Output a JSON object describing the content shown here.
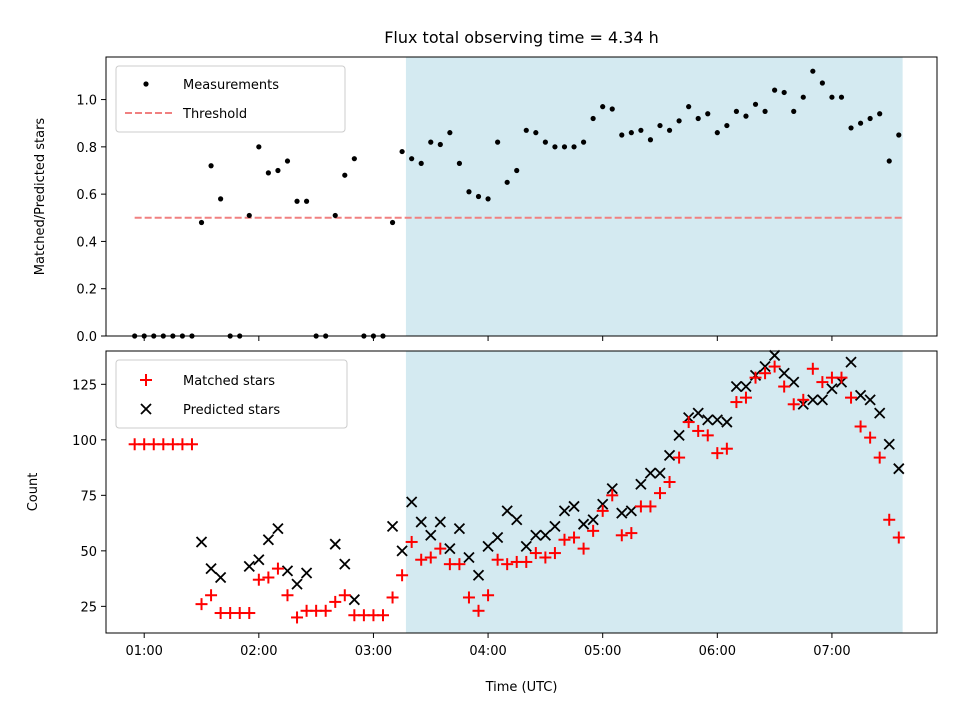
{
  "chart_data": [
    {
      "type": "scatter",
      "title": "Flux total observing time = 4.34 h",
      "xlabel": "",
      "ylabel": "Matched/Predicted stars",
      "xlim": [
        "00:40",
        "07:55"
      ],
      "ylim": [
        0,
        1.18
      ],
      "yticks": [
        "0.0",
        "0.2",
        "0.4",
        "0.6",
        "0.8",
        "1.0"
      ],
      "grid": false,
      "legend_position": "top-left",
      "shaded_span": {
        "from": "03:17",
        "to": "07:37",
        "color": "#d4eaf1"
      },
      "threshold": {
        "name": "Threshold",
        "value": 0.5,
        "from": "00:55",
        "to": "07:37",
        "color": "#f08080"
      },
      "series": [
        {
          "name": "Measurements",
          "color": "#000000",
          "x": [
            "00:55",
            "01:00",
            "01:05",
            "01:10",
            "01:15",
            "01:20",
            "01:25",
            "01:30",
            "01:35",
            "01:40",
            "01:45",
            "01:50",
            "01:55",
            "02:00",
            "02:05",
            "02:10",
            "02:15",
            "02:20",
            "02:25",
            "02:30",
            "02:35",
            "02:40",
            "02:45",
            "02:50",
            "02:55",
            "03:00",
            "03:05",
            "03:10",
            "03:15",
            "03:20",
            "03:25",
            "03:30",
            "03:35",
            "03:40",
            "03:45",
            "03:50",
            "03:55",
            "04:00",
            "04:05",
            "04:10",
            "04:15",
            "04:20",
            "04:25",
            "04:30",
            "04:35",
            "04:40",
            "04:45",
            "04:50",
            "04:55",
            "05:00",
            "05:05",
            "05:10",
            "05:15",
            "05:20",
            "05:25",
            "05:30",
            "05:35",
            "05:40",
            "05:45",
            "05:50",
            "05:55",
            "06:00",
            "06:05",
            "06:10",
            "06:15",
            "06:20",
            "06:25",
            "06:30",
            "06:35",
            "06:40",
            "06:45",
            "06:50",
            "06:55",
            "07:00",
            "07:05",
            "07:10",
            "07:15",
            "07:20",
            "07:25",
            "07:30",
            "07:35"
          ],
          "y": [
            0,
            0,
            0,
            0,
            0,
            0,
            0,
            0.48,
            0.72,
            0.58,
            0,
            0,
            0.51,
            0.8,
            0.69,
            0.7,
            0.74,
            0.57,
            0.57,
            0,
            0,
            0.51,
            0.68,
            0.75,
            0,
            0,
            0,
            0.48,
            0.78,
            0.75,
            0.73,
            0.82,
            0.81,
            0.86,
            0.73,
            0.61,
            0.59,
            0.58,
            0.82,
            0.65,
            0.7,
            0.87,
            0.86,
            0.82,
            0.8,
            0.8,
            0.8,
            0.82,
            0.92,
            0.97,
            0.96,
            0.85,
            0.86,
            0.87,
            0.83,
            0.89,
            0.87,
            0.91,
            0.97,
            0.92,
            0.94,
            0.86,
            0.89,
            0.95,
            0.93,
            0.98,
            0.95,
            1.04,
            1.03,
            0.95,
            1.01,
            1.12,
            1.07,
            1.01,
            1.01,
            0.88,
            0.9,
            0.92,
            0.94,
            0.74,
            0.85
          ]
        }
      ]
    },
    {
      "type": "scatter",
      "title": "",
      "xlabel": "Time (UTC)",
      "ylabel": "Count",
      "xlim": [
        "00:40",
        "07:55"
      ],
      "ylim": [
        13,
        140
      ],
      "xticks": [
        "01:00",
        "02:00",
        "03:00",
        "04:00",
        "05:00",
        "06:00",
        "07:00"
      ],
      "yticks": [
        "25",
        "50",
        "75",
        "100",
        "125"
      ],
      "grid": false,
      "legend_position": "top-left",
      "shaded_span": {
        "from": "03:17",
        "to": "07:37",
        "color": "#d4eaf1"
      },
      "series": [
        {
          "name": "Matched stars",
          "marker": "plus",
          "color": "#ff0000",
          "x": [
            "00:55",
            "01:00",
            "01:05",
            "01:10",
            "01:15",
            "01:20",
            "01:25",
            "01:30",
            "01:35",
            "01:40",
            "01:45",
            "01:50",
            "01:55",
            "02:00",
            "02:05",
            "02:10",
            "02:15",
            "02:20",
            "02:25",
            "02:30",
            "02:35",
            "02:40",
            "02:45",
            "02:50",
            "02:55",
            "03:00",
            "03:05",
            "03:10",
            "03:15",
            "03:20",
            "03:25",
            "03:30",
            "03:35",
            "03:40",
            "03:45",
            "03:50",
            "03:55",
            "04:00",
            "04:05",
            "04:10",
            "04:15",
            "04:20",
            "04:25",
            "04:30",
            "04:35",
            "04:40",
            "04:45",
            "04:50",
            "04:55",
            "05:00",
            "05:05",
            "05:10",
            "05:15",
            "05:20",
            "05:25",
            "05:30",
            "05:35",
            "05:40",
            "05:45",
            "05:50",
            "05:55",
            "06:00",
            "06:05",
            "06:10",
            "06:15",
            "06:20",
            "06:25",
            "06:30",
            "06:35",
            "06:40",
            "06:45",
            "06:50",
            "06:55",
            "07:00",
            "07:05",
            "07:10",
            "07:15",
            "07:20",
            "07:25",
            "07:30",
            "07:35"
          ],
          "y": [
            98,
            98,
            98,
            98,
            98,
            98,
            98,
            26,
            30,
            22,
            22,
            22,
            22,
            37,
            38,
            42,
            30,
            20,
            23,
            23,
            23,
            27,
            30,
            21,
            21,
            21,
            21,
            29,
            39,
            54,
            46,
            47,
            51,
            44,
            44,
            29,
            23,
            30,
            46,
            44,
            45,
            45,
            49,
            47,
            49,
            55,
            56,
            51,
            59,
            68,
            75,
            57,
            58,
            70,
            70,
            76,
            81,
            92,
            108,
            104,
            102,
            94,
            96,
            117,
            119,
            128,
            130,
            133,
            124,
            116,
            118,
            132,
            126,
            128,
            128,
            119,
            106,
            101,
            92,
            64,
            56
          ]
        },
        {
          "name": "Predicted stars",
          "marker": "x",
          "color": "#000000",
          "x": [
            "01:30",
            "01:35",
            "01:40",
            "01:55",
            "02:00",
            "02:05",
            "02:10",
            "02:15",
            "02:20",
            "02:25",
            "02:40",
            "02:45",
            "02:50",
            "03:10",
            "03:15",
            "03:20",
            "03:25",
            "03:30",
            "03:35",
            "03:40",
            "03:45",
            "03:50",
            "03:55",
            "04:00",
            "04:05",
            "04:10",
            "04:15",
            "04:20",
            "04:25",
            "04:30",
            "04:35",
            "04:40",
            "04:45",
            "04:50",
            "04:55",
            "05:00",
            "05:05",
            "05:10",
            "05:15",
            "05:20",
            "05:25",
            "05:30",
            "05:35",
            "05:40",
            "05:45",
            "05:50",
            "05:55",
            "06:00",
            "06:05",
            "06:10",
            "06:15",
            "06:20",
            "06:25",
            "06:30",
            "06:35",
            "06:40",
            "06:45",
            "06:50",
            "06:55",
            "07:00",
            "07:05",
            "07:10",
            "07:15",
            "07:20",
            "07:25",
            "07:30",
            "07:35"
          ],
          "y": [
            54,
            42,
            38,
            43,
            46,
            55,
            60,
            41,
            35,
            40,
            53,
            44,
            28,
            61,
            50,
            72,
            63,
            57,
            63,
            51,
            60,
            47,
            39,
            52,
            56,
            68,
            64,
            52,
            57,
            57,
            61,
            68,
            70,
            62,
            64,
            71,
            78,
            67,
            68,
            80,
            85,
            85,
            93,
            102,
            110,
            112,
            109,
            109,
            108,
            124,
            124,
            129,
            133,
            138,
            130,
            126,
            116,
            118,
            118,
            123,
            126,
            135,
            120,
            118,
            112,
            98,
            87
          ]
        }
      ]
    }
  ]
}
